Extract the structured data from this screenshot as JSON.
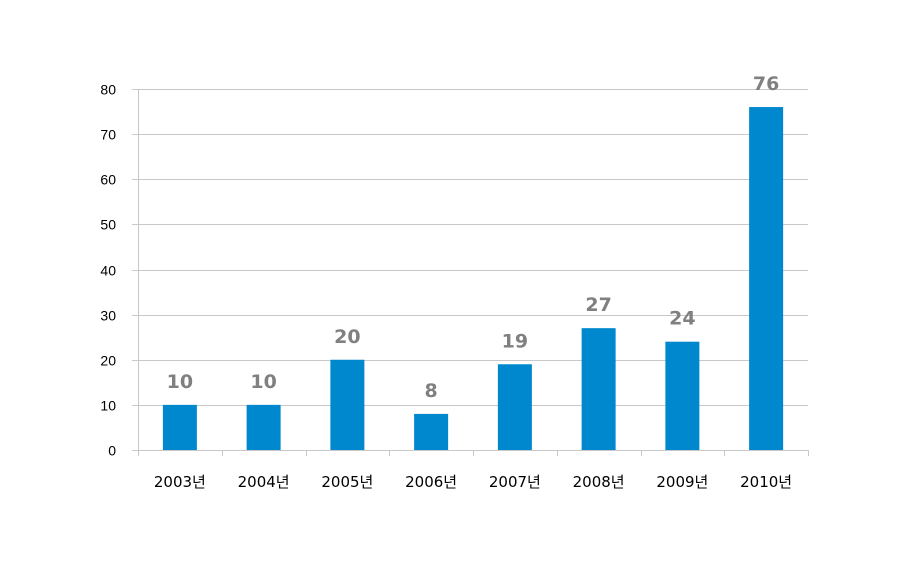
{
  "chart_data": {
    "type": "bar",
    "title": "",
    "xlabel": "",
    "ylabel": "",
    "categories": [
      "2003년",
      "2004년",
      "2005년",
      "2006년",
      "2007년",
      "2008년",
      "2009년",
      "2010년"
    ],
    "values": [
      10,
      10,
      20,
      8,
      19,
      27,
      24,
      76
    ],
    "data_labels": [
      "10",
      "10",
      "20",
      "8",
      "19",
      "27",
      "24",
      "76"
    ],
    "ylim": [
      0,
      80
    ],
    "yticks": [
      "0",
      "10",
      "20",
      "30",
      "40",
      "50",
      "60",
      "70",
      "80"
    ],
    "grid": true,
    "legend": "none",
    "bar_color": "#0088CE",
    "label_color": "#808080",
    "grid_color": "#C8C8C8"
  }
}
